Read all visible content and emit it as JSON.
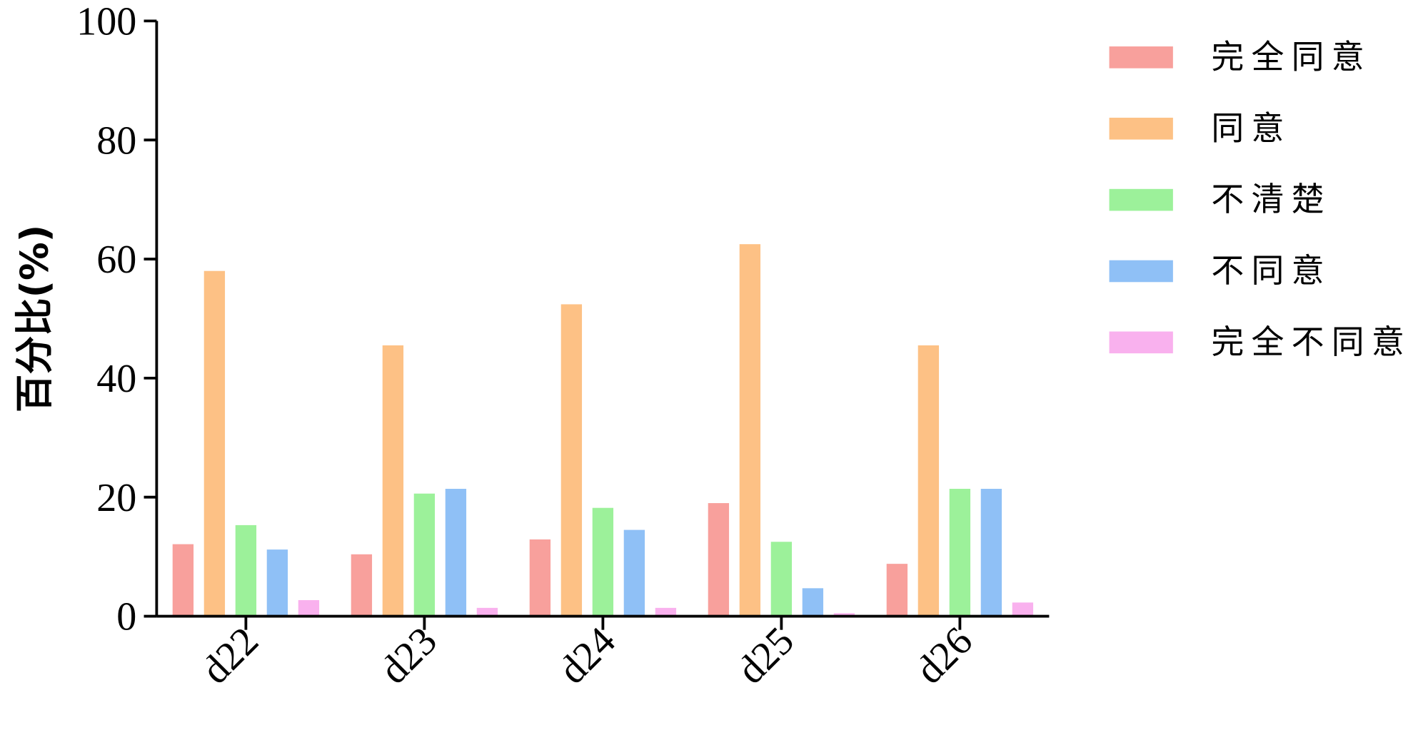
{
  "chart_data": {
    "type": "bar",
    "y_label": "百分比(%)",
    "categories": [
      "d22",
      "d23",
      "d24",
      "d25",
      "d26"
    ],
    "series": [
      {
        "name": "完全同意",
        "color": "#f8a09c",
        "values": [
          12.1,
          10.4,
          12.9,
          19.0,
          8.8
        ]
      },
      {
        "name": "同意",
        "color": "#fdc185",
        "values": [
          58.0,
          45.5,
          52.4,
          62.5,
          45.5
        ]
      },
      {
        "name": "不清楚",
        "color": "#9cf19a",
        "values": [
          15.3,
          20.6,
          18.2,
          12.5,
          21.4
        ]
      },
      {
        "name": "不同意",
        "color": "#8fc0f6",
        "values": [
          11.2,
          21.4,
          14.5,
          4.7,
          21.4
        ]
      },
      {
        "name": "完全不同意",
        "color": "#f9b1ee",
        "values": [
          2.7,
          1.4,
          1.4,
          0.5,
          2.3
        ]
      }
    ],
    "ylim": [
      0,
      100
    ],
    "yticks": [
      0,
      20,
      40,
      60,
      80,
      100
    ],
    "legend": "right"
  }
}
